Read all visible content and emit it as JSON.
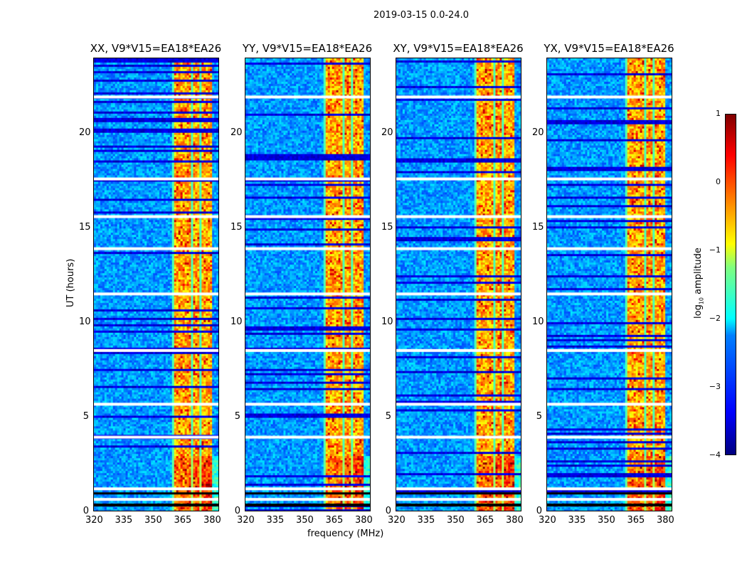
{
  "suptitle": "2019-03-15 0.0-24.0",
  "chart_data": {
    "type": "heatmap",
    "xlabel": "frequency (MHz)",
    "ylabel": "UT (hours)",
    "xlim": [
      320,
      384
    ],
    "ylim": [
      0,
      24
    ],
    "xticks": [
      "320",
      "335",
      "350",
      "365",
      "380"
    ],
    "yticks": [
      "0",
      "5",
      "10",
      "15",
      "20"
    ],
    "panels": [
      {
        "title": "XX, V9*V15=EA18*EA26"
      },
      {
        "title": "YY, V9*V15=EA18*EA26"
      },
      {
        "title": "XY, V9*V15=EA18*EA26"
      },
      {
        "title": "YX, V9*V15=EA18*EA26"
      }
    ],
    "rfi_band_mhz": [
      360,
      380
    ],
    "flagged_hours": [
      0.6,
      1.16,
      3.9,
      5.65,
      8.5,
      11.5,
      13.9,
      15.6,
      17.6,
      21.95
    ],
    "colorbar": {
      "label": "log10 amplitude",
      "label_main": "log",
      "label_sub": "10",
      "label_rest": " amplitude",
      "range": [
        -4,
        1
      ],
      "ticks": [
        "1",
        "0",
        "−1",
        "−2",
        "−3",
        "−4"
      ],
      "colormap": "jet"
    }
  }
}
